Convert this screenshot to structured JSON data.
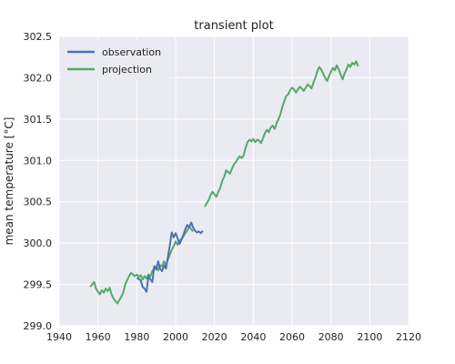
{
  "chart_data": {
    "type": "line",
    "title": "transient plot",
    "xlabel": "",
    "ylabel": "mean temperature [°C]",
    "xlim": [
      1940,
      2120
    ],
    "ylim": [
      299.0,
      302.5
    ],
    "xticks": [
      "1940",
      "1960",
      "1980",
      "2000",
      "2020",
      "2040",
      "2060",
      "2080",
      "2100",
      "2120"
    ],
    "yticks": [
      "299.0",
      "299.5",
      "300.0",
      "300.5",
      "301.0",
      "301.5",
      "302.0",
      "302.5"
    ],
    "grid": true,
    "legend_position": "top-left",
    "background_color": "#EAEAF2",
    "series": [
      {
        "name": "observation",
        "color": "#4C72B0",
        "points": [
          [
            1980,
            299.58
          ],
          [
            1982,
            299.55
          ],
          [
            1983,
            299.47
          ],
          [
            1984,
            299.45
          ],
          [
            1985,
            299.41
          ],
          [
            1986,
            299.6
          ],
          [
            1987,
            299.56
          ],
          [
            1988,
            299.53
          ],
          [
            1989,
            299.72
          ],
          [
            1990,
            299.68
          ],
          [
            1991,
            299.78
          ],
          [
            1992,
            299.69
          ],
          [
            1993,
            299.66
          ],
          [
            1994,
            299.73
          ],
          [
            1995,
            299.69
          ],
          [
            1996,
            299.83
          ],
          [
            1997,
            299.97
          ],
          [
            1998,
            300.13
          ],
          [
            1999,
            300.07
          ],
          [
            2000,
            300.12
          ],
          [
            2001,
            300.06
          ],
          [
            2002,
            299.99
          ],
          [
            2003,
            300.04
          ],
          [
            2004,
            300.1
          ],
          [
            2005,
            300.17
          ],
          [
            2006,
            300.22
          ],
          [
            2007,
            300.19
          ],
          [
            2008,
            300.25
          ],
          [
            2009,
            300.19
          ],
          [
            2010,
            300.15
          ],
          [
            2011,
            300.13
          ],
          [
            2012,
            300.14
          ],
          [
            2013,
            300.12
          ],
          [
            2014,
            300.15
          ]
        ]
      },
      {
        "name": "projection",
        "color": "#55A868",
        "segments": [
          [
            [
              1956,
              299.47
            ],
            [
              1957,
              299.5
            ],
            [
              1958,
              299.53
            ],
            [
              1959,
              299.45
            ],
            [
              1960,
              299.41
            ],
            [
              1961,
              299.38
            ],
            [
              1962,
              299.43
            ],
            [
              1963,
              299.4
            ],
            [
              1964,
              299.45
            ],
            [
              1965,
              299.42
            ],
            [
              1966,
              299.46
            ],
            [
              1967,
              299.38
            ],
            [
              1968,
              299.33
            ],
            [
              1969,
              299.3
            ],
            [
              1970,
              299.27
            ],
            [
              1971,
              299.31
            ],
            [
              1972,
              299.35
            ],
            [
              1973,
              299.4
            ],
            [
              1974,
              299.5
            ],
            [
              1975,
              299.55
            ],
            [
              1976,
              299.6
            ],
            [
              1977,
              299.64
            ],
            [
              1978,
              299.62
            ],
            [
              1979,
              299.6
            ],
            [
              1980,
              299.62
            ],
            [
              1981,
              299.59
            ],
            [
              1982,
              299.61
            ],
            [
              1983,
              299.56
            ],
            [
              1984,
              299.6
            ],
            [
              1985,
              299.57
            ],
            [
              1986,
              299.62
            ],
            [
              1987,
              299.6
            ],
            [
              1988,
              299.66
            ],
            [
              1989,
              299.7
            ],
            [
              1990,
              299.72
            ],
            [
              1991,
              299.67
            ],
            [
              1992,
              299.73
            ],
            [
              1993,
              299.72
            ],
            [
              1994,
              299.78
            ],
            [
              1995,
              299.73
            ],
            [
              1996,
              299.8
            ],
            [
              1997,
              299.86
            ],
            [
              1998,
              299.92
            ],
            [
              1999,
              299.96
            ],
            [
              2000,
              300.02
            ],
            [
              2001,
              299.98
            ],
            [
              2002,
              300.03
            ],
            [
              2003,
              300.05
            ],
            [
              2004,
              300.08
            ],
            [
              2005,
              300.12
            ],
            [
              2006,
              300.15
            ],
            [
              2007,
              300.2
            ],
            [
              2008,
              300.17
            ],
            [
              2009,
              300.14
            ]
          ],
          [
            [
              2015,
              300.44
            ],
            [
              2016,
              300.48
            ],
            [
              2017,
              300.52
            ],
            [
              2018,
              300.58
            ],
            [
              2019,
              300.62
            ],
            [
              2020,
              300.59
            ],
            [
              2021,
              300.56
            ],
            [
              2022,
              300.62
            ],
            [
              2023,
              300.67
            ],
            [
              2024,
              300.75
            ],
            [
              2025,
              300.8
            ],
            [
              2026,
              300.88
            ],
            [
              2027,
              300.86
            ],
            [
              2028,
              300.84
            ],
            [
              2029,
              300.9
            ],
            [
              2030,
              300.95
            ],
            [
              2031,
              300.98
            ],
            [
              2032,
              301.02
            ],
            [
              2033,
              301.05
            ],
            [
              2034,
              301.03
            ],
            [
              2035,
              301.06
            ],
            [
              2036,
              301.15
            ],
            [
              2037,
              301.22
            ],
            [
              2038,
              301.25
            ],
            [
              2039,
              301.23
            ],
            [
              2040,
              301.26
            ],
            [
              2041,
              301.22
            ],
            [
              2042,
              301.25
            ],
            [
              2043,
              301.24
            ],
            [
              2044,
              301.21
            ],
            [
              2045,
              301.27
            ],
            [
              2046,
              301.33
            ],
            [
              2047,
              301.37
            ],
            [
              2048,
              301.34
            ],
            [
              2049,
              301.4
            ],
            [
              2050,
              301.42
            ],
            [
              2051,
              301.38
            ],
            [
              2052,
              301.45
            ],
            [
              2053,
              301.5
            ],
            [
              2054,
              301.56
            ],
            [
              2055,
              301.65
            ],
            [
              2056,
              301.72
            ],
            [
              2057,
              301.78
            ],
            [
              2058,
              301.8
            ],
            [
              2059,
              301.85
            ],
            [
              2060,
              301.88
            ],
            [
              2061,
              301.86
            ],
            [
              2062,
              301.82
            ],
            [
              2063,
              301.86
            ],
            [
              2064,
              301.89
            ],
            [
              2065,
              301.87
            ],
            [
              2066,
              301.84
            ],
            [
              2067,
              301.88
            ],
            [
              2068,
              301.92
            ],
            [
              2069,
              301.9
            ],
            [
              2070,
              301.87
            ],
            [
              2071,
              301.94
            ],
            [
              2072,
              302.0
            ],
            [
              2073,
              302.08
            ],
            [
              2074,
              302.13
            ],
            [
              2075,
              302.1
            ],
            [
              2076,
              302.05
            ],
            [
              2077,
              302.0
            ],
            [
              2078,
              301.96
            ],
            [
              2079,
              302.02
            ],
            [
              2080,
              302.07
            ],
            [
              2081,
              302.12
            ],
            [
              2082,
              302.09
            ],
            [
              2083,
              302.15
            ],
            [
              2084,
              302.1
            ],
            [
              2085,
              302.04
            ],
            [
              2086,
              301.98
            ],
            [
              2087,
              302.05
            ],
            [
              2088,
              302.1
            ],
            [
              2089,
              302.16
            ],
            [
              2090,
              302.13
            ],
            [
              2091,
              302.18
            ],
            [
              2092,
              302.16
            ],
            [
              2093,
              302.2
            ],
            [
              2094,
              302.14
            ]
          ]
        ]
      }
    ]
  }
}
